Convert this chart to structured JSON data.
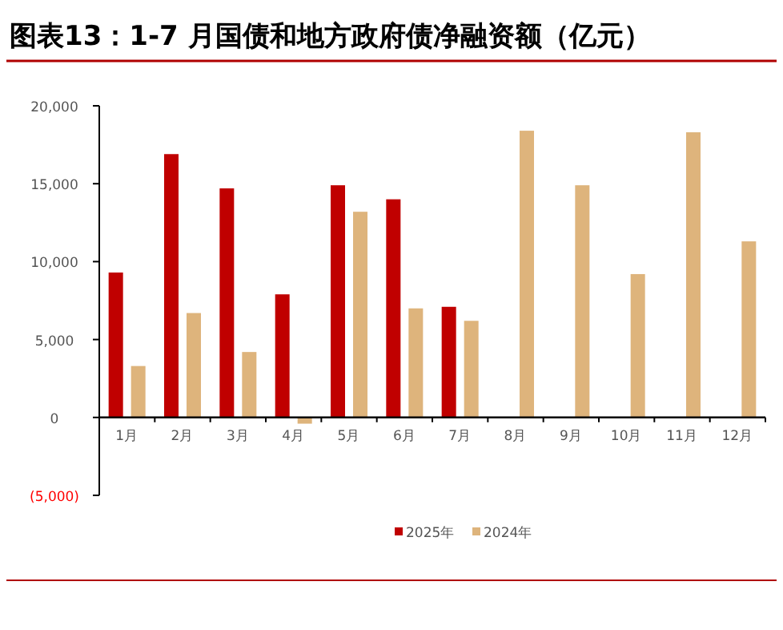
{
  "chart_data": {
    "type": "bar",
    "title": "图表13：1-7 月国债和地方政府债净融资额（亿元）",
    "categories": [
      "1月",
      "2月",
      "3月",
      "4月",
      "5月",
      "6月",
      "7月",
      "8月",
      "9月",
      "10月",
      "11月",
      "12月"
    ],
    "series": [
      {
        "name": "2025年",
        "color": "#c00000",
        "values": [
          9300,
          16900,
          14700,
          7900,
          14900,
          14000,
          7100,
          null,
          null,
          null,
          null,
          null
        ]
      },
      {
        "name": "2024年",
        "color": "#deb47c",
        "values": [
          3300,
          6700,
          4200,
          -400,
          13200,
          7000,
          6200,
          18400,
          14900,
          9200,
          18300,
          11300
        ]
      }
    ],
    "ylim": [
      -5000,
      20000
    ],
    "yticks": [
      {
        "value": -5000,
        "label": "(5,000)"
      },
      {
        "value": 0,
        "label": "0"
      },
      {
        "value": 5000,
        "label": "5,000"
      },
      {
        "value": 10000,
        "label": "10,000"
      },
      {
        "value": 15000,
        "label": "15,000"
      },
      {
        "value": 20000,
        "label": "20,000"
      }
    ],
    "legend": "bottom",
    "grid": false
  }
}
